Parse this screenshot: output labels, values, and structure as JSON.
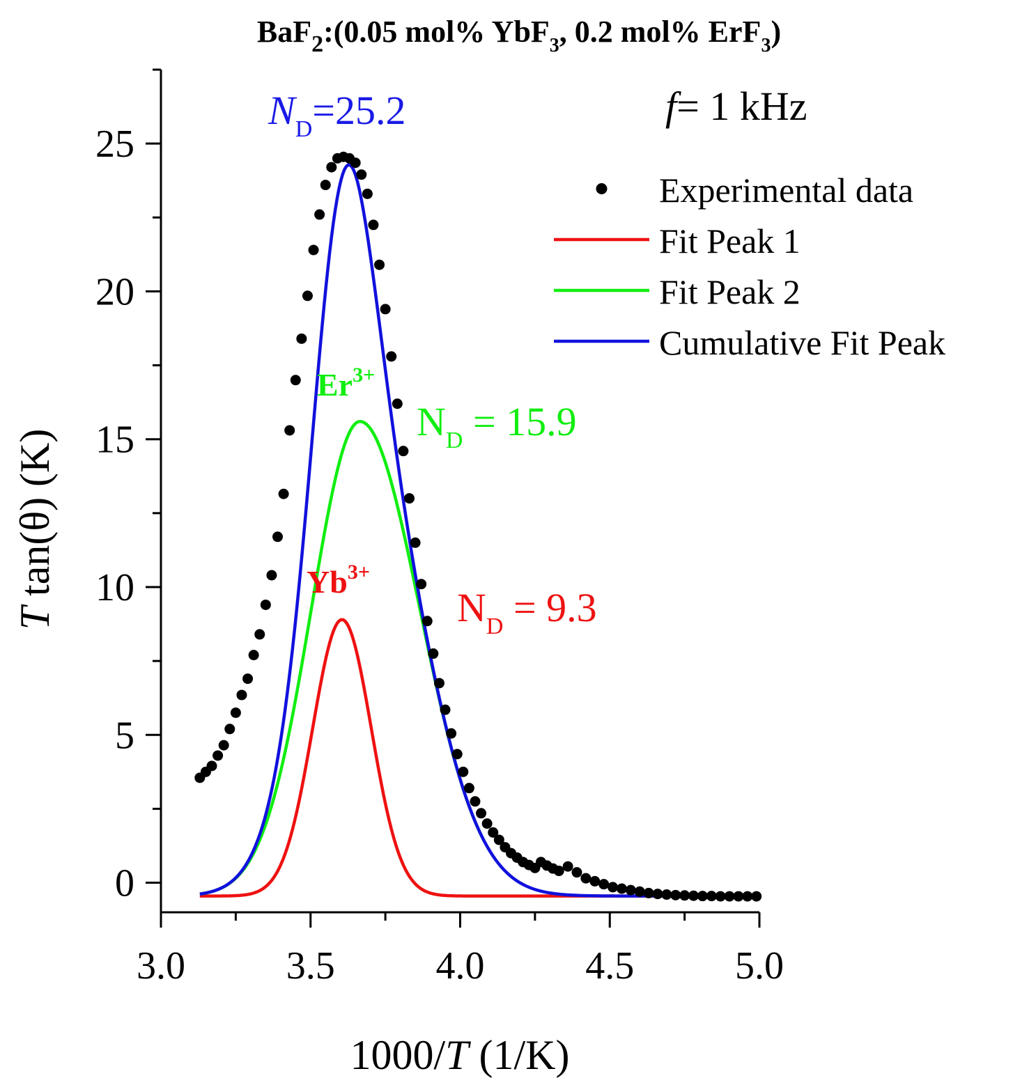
{
  "chart_data": {
    "type": "scatter",
    "title": {
      "prefix": "BaF",
      "sub1": "2",
      "mid1": ":(0.05 mol% YbF",
      "sub2": "3",
      "mid2": ", 0.2 mol% ErF",
      "sub3": "3",
      "suffix": ")"
    },
    "xlabel": {
      "pre": "1000/",
      "italic": "T",
      "post": " (1/K)"
    },
    "ylabel": {
      "italic": "T",
      "post": " tan(θ) (K)"
    },
    "xlim": [
      3.0,
      5.0
    ],
    "ylim": [
      -1.0,
      27.5
    ],
    "xticks": [
      "3.0",
      "3.5",
      "4.0",
      "4.5",
      "5.0"
    ],
    "yticks": [
      "0",
      "5",
      "10",
      "15",
      "20",
      "25"
    ],
    "frequency_label": {
      "italic": "f",
      "rest": "= 1 kHz"
    },
    "legend": [
      {
        "label": "Experimental data",
        "kind": "dot",
        "color": "#000000"
      },
      {
        "label": "Fit Peak 1",
        "kind": "line",
        "color": "#ee1111"
      },
      {
        "label": "Fit Peak 2",
        "kind": "line",
        "color": "#11ee11"
      },
      {
        "label": "Cumulative Fit Peak",
        "kind": "line",
        "color": "#1111dd"
      }
    ],
    "annotations": {
      "cumulative": {
        "n": "N",
        "sub": "D",
        "value": "=25.2",
        "color": "#1a1ae6"
      },
      "peak2_ion": {
        "base": "Er",
        "sup": "3+",
        "color": "#11ee11"
      },
      "peak2_nd": {
        "n": "N",
        "sub": "D",
        "value": " = 15.9",
        "color": "#11ee11"
      },
      "peak1_ion": {
        "base": "Yb",
        "sup": "3+",
        "color": "#ee1111"
      },
      "peak1_nd": {
        "n": "N",
        "sub": "D",
        "value": " = 9.3",
        "color": "#ee1111"
      }
    },
    "fit_model": {
      "baseline": -0.45,
      "peak1": {
        "center": 3.605,
        "height": 9.35,
        "sigma_left": 0.098,
        "sigma_right": 0.098
      },
      "peak2": {
        "center": 3.665,
        "height": 16.05,
        "sigma_left": 0.162,
        "sigma_right": 0.2
      }
    },
    "series": [
      {
        "name": "Experimental data",
        "x": [
          3.13,
          3.15,
          3.17,
          3.19,
          3.21,
          3.23,
          3.25,
          3.27,
          3.29,
          3.31,
          3.33,
          3.35,
          3.37,
          3.39,
          3.41,
          3.43,
          3.45,
          3.47,
          3.49,
          3.51,
          3.53,
          3.55,
          3.57,
          3.59,
          3.61,
          3.63,
          3.65,
          3.67,
          3.69,
          3.71,
          3.73,
          3.75,
          3.77,
          3.79,
          3.81,
          3.83,
          3.85,
          3.87,
          3.89,
          3.91,
          3.93,
          3.95,
          3.97,
          3.99,
          4.01,
          4.03,
          4.05,
          4.07,
          4.09,
          4.11,
          4.13,
          4.15,
          4.17,
          4.19,
          4.21,
          4.23,
          4.25,
          4.27,
          4.29,
          4.31,
          4.33,
          4.36,
          4.39,
          4.42,
          4.45,
          4.48,
          4.51,
          4.54,
          4.57,
          4.6,
          4.63,
          4.66,
          4.69,
          4.72,
          4.75,
          4.78,
          4.81,
          4.84,
          4.87,
          4.9,
          4.93,
          4.96,
          4.99
        ],
        "y": [
          3.55,
          3.75,
          3.95,
          4.3,
          4.65,
          5.2,
          5.75,
          6.35,
          6.9,
          7.7,
          8.4,
          9.4,
          10.4,
          11.7,
          13.15,
          15.3,
          17.0,
          18.4,
          19.85,
          21.4,
          22.6,
          23.6,
          24.2,
          24.5,
          24.55,
          24.5,
          24.35,
          23.95,
          23.3,
          22.25,
          20.9,
          19.4,
          17.8,
          16.2,
          14.6,
          13.0,
          11.5,
          10.1,
          8.85,
          7.75,
          6.75,
          5.85,
          5.05,
          4.35,
          3.75,
          3.2,
          2.75,
          2.35,
          2.0,
          1.7,
          1.45,
          1.2,
          1.0,
          0.85,
          0.7,
          0.6,
          0.5,
          0.7,
          0.58,
          0.48,
          0.4,
          0.55,
          0.35,
          0.15,
          0.05,
          -0.05,
          -0.15,
          -0.2,
          -0.25,
          -0.3,
          -0.35,
          -0.38,
          -0.4,
          -0.42,
          -0.43,
          -0.44,
          -0.45,
          -0.45,
          -0.46,
          -0.46,
          -0.46,
          -0.46,
          -0.46
        ]
      }
    ]
  }
}
